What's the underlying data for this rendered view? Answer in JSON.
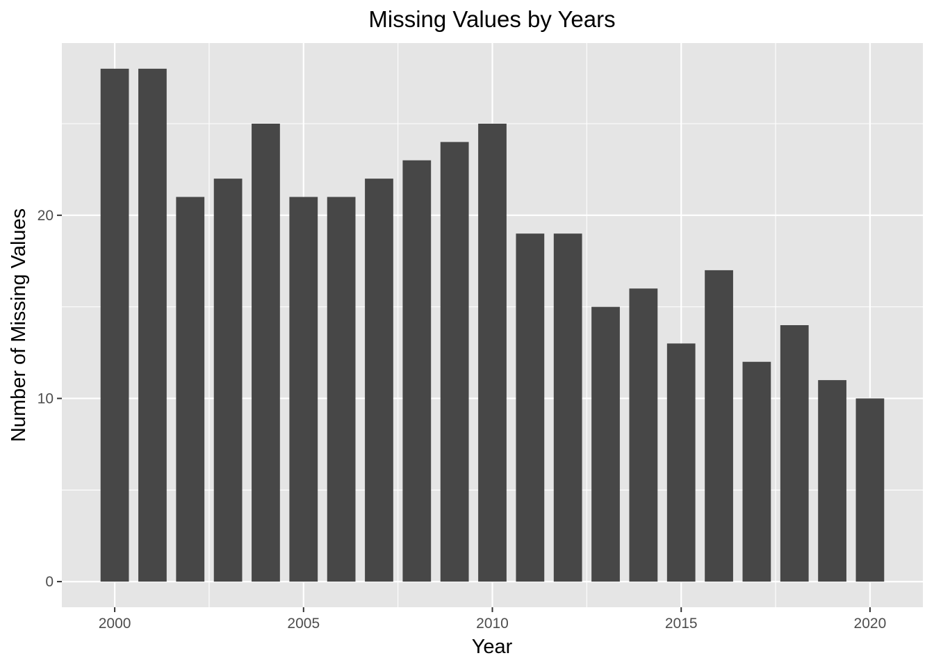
{
  "chart_data": {
    "type": "bar",
    "title": "Missing Values by Years",
    "xlabel": "Year",
    "ylabel": "Number of Missing Values",
    "x": [
      2000,
      2001,
      2002,
      2003,
      2004,
      2005,
      2006,
      2007,
      2008,
      2009,
      2010,
      2011,
      2012,
      2013,
      2014,
      2015,
      2016,
      2017,
      2018,
      2019,
      2020
    ],
    "values": [
      28,
      28,
      21,
      22,
      25,
      21,
      21,
      22,
      23,
      24,
      25,
      19,
      19,
      15,
      16,
      13,
      17,
      12,
      14,
      11,
      10
    ],
    "xlim": [
      1998.6,
      2021.4
    ],
    "ylim": [
      -1.4,
      29.4
    ],
    "x_ticks": [
      2000,
      2005,
      2010,
      2015,
      2020
    ],
    "x_tick_labels": [
      "2000",
      "2005",
      "2010",
      "2015",
      "2020"
    ],
    "y_ticks": [
      0,
      10,
      20
    ],
    "y_tick_labels": [
      "0",
      "10",
      "20"
    ],
    "grid": true,
    "legend": "none",
    "colors": {
      "bar": "#474747",
      "panel_background": "#e5e5e5",
      "grid": "#ffffff",
      "tick_text": "#4d4d4d",
      "text": "#000000"
    }
  }
}
